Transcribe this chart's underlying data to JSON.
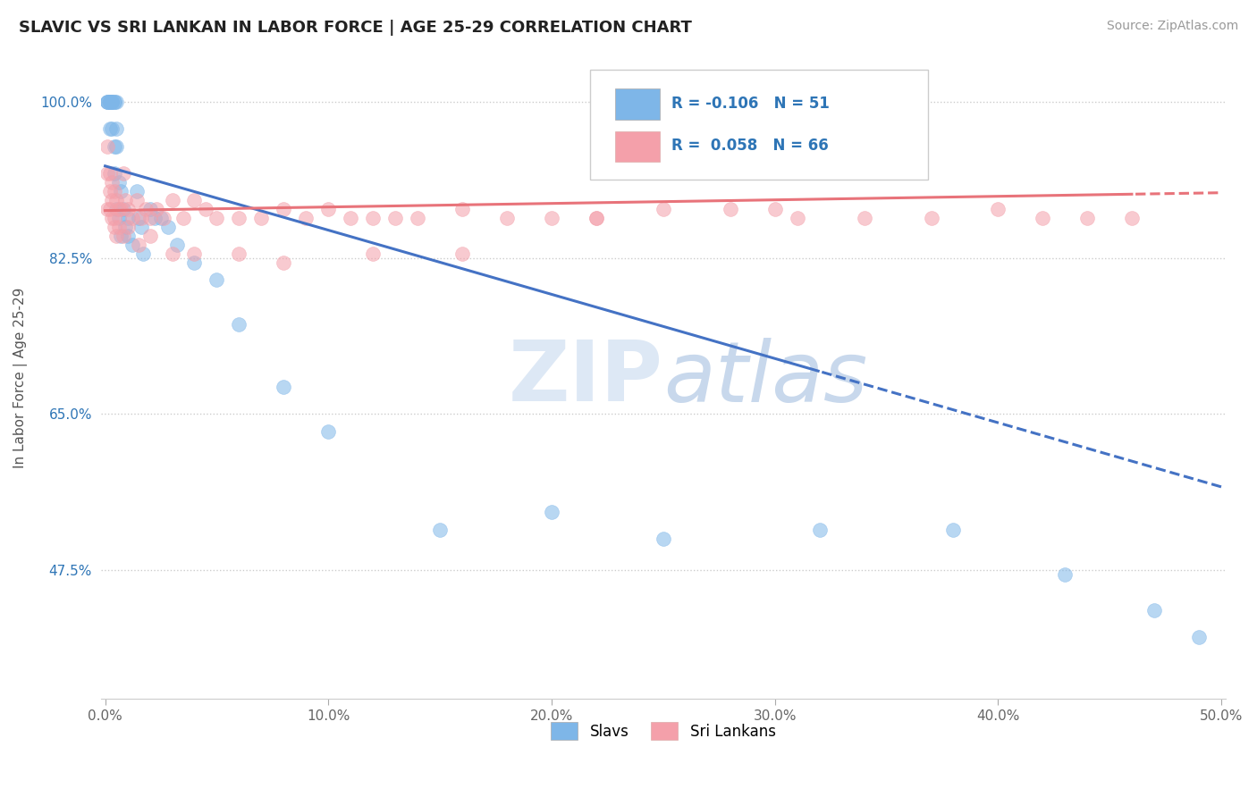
{
  "title": "SLAVIC VS SRI LANKAN IN LABOR FORCE | AGE 25-29 CORRELATION CHART",
  "source": "Source: ZipAtlas.com",
  "ylabel_label": "In Labor Force | Age 25-29",
  "xlim": [
    -0.002,
    0.502
  ],
  "ylim": [
    0.33,
    1.05
  ],
  "ytick_vals": [
    0.475,
    0.65,
    0.825,
    1.0
  ],
  "ytick_labels": [
    "47.5%",
    "65.0%",
    "82.5%",
    "100.0%"
  ],
  "xtick_vals": [
    0.0,
    0.1,
    0.2,
    0.3,
    0.4,
    0.5
  ],
  "xtick_labels": [
    "0.0%",
    "10.0%",
    "20.0%",
    "30.0%",
    "40.0%",
    "50.0%"
  ],
  "slavic_R": -0.106,
  "slavic_N": 51,
  "sri_lankan_R": 0.058,
  "sri_lankan_N": 66,
  "slavic_color": "#7EB6E8",
  "sri_lankan_color": "#F4A0AA",
  "slavic_line_color": "#4472C4",
  "sri_lankan_line_color": "#E8737A",
  "watermark": "ZIPatlas",
  "legend_R_color": "#2E75B6",
  "slavic_line_intercept": 0.928,
  "slavic_line_slope": -0.72,
  "sri_lankan_line_intercept": 0.878,
  "sri_lankan_line_slope": 0.04,
  "slavic_x": [
    0.001,
    0.001,
    0.001,
    0.002,
    0.002,
    0.002,
    0.002,
    0.002,
    0.003,
    0.003,
    0.003,
    0.003,
    0.004,
    0.004,
    0.004,
    0.004,
    0.005,
    0.005,
    0.005,
    0.005,
    0.006,
    0.006,
    0.007,
    0.007,
    0.008,
    0.009,
    0.01,
    0.01,
    0.012,
    0.014,
    0.015,
    0.016,
    0.017,
    0.02,
    0.022,
    0.025,
    0.028,
    0.032,
    0.04,
    0.05,
    0.06,
    0.08,
    0.1,
    0.15,
    0.2,
    0.25,
    0.32,
    0.38,
    0.43,
    0.47,
    0.49
  ],
  "slavic_y": [
    1.0,
    1.0,
    1.0,
    1.0,
    1.0,
    1.0,
    1.0,
    0.97,
    1.0,
    1.0,
    1.0,
    0.97,
    1.0,
    1.0,
    0.95,
    0.92,
    1.0,
    0.97,
    0.95,
    0.88,
    0.91,
    0.87,
    0.9,
    0.85,
    0.88,
    0.86,
    0.87,
    0.85,
    0.84,
    0.9,
    0.87,
    0.86,
    0.83,
    0.88,
    0.87,
    0.87,
    0.86,
    0.84,
    0.82,
    0.8,
    0.75,
    0.68,
    0.63,
    0.52,
    0.54,
    0.51,
    0.52,
    0.52,
    0.47,
    0.43,
    0.4
  ],
  "sri_lankan_x": [
    0.001,
    0.001,
    0.001,
    0.002,
    0.002,
    0.003,
    0.003,
    0.004,
    0.004,
    0.005,
    0.005,
    0.006,
    0.007,
    0.008,
    0.009,
    0.01,
    0.012,
    0.014,
    0.016,
    0.018,
    0.02,
    0.023,
    0.026,
    0.03,
    0.035,
    0.04,
    0.045,
    0.05,
    0.06,
    0.07,
    0.08,
    0.09,
    0.1,
    0.11,
    0.12,
    0.13,
    0.14,
    0.16,
    0.18,
    0.2,
    0.22,
    0.25,
    0.28,
    0.31,
    0.34,
    0.37,
    0.4,
    0.42,
    0.44,
    0.46,
    0.002,
    0.003,
    0.004,
    0.006,
    0.008,
    0.01,
    0.015,
    0.02,
    0.03,
    0.04,
    0.06,
    0.08,
    0.12,
    0.16,
    0.22,
    0.3
  ],
  "sri_lankan_y": [
    0.95,
    0.92,
    0.88,
    0.92,
    0.88,
    0.91,
    0.87,
    0.9,
    0.86,
    0.89,
    0.85,
    0.88,
    0.88,
    0.92,
    0.89,
    0.88,
    0.87,
    0.89,
    0.87,
    0.88,
    0.87,
    0.88,
    0.87,
    0.89,
    0.87,
    0.89,
    0.88,
    0.87,
    0.87,
    0.87,
    0.88,
    0.87,
    0.88,
    0.87,
    0.87,
    0.87,
    0.87,
    0.88,
    0.87,
    0.87,
    0.87,
    0.88,
    0.88,
    0.87,
    0.87,
    0.87,
    0.88,
    0.87,
    0.87,
    0.87,
    0.9,
    0.89,
    0.87,
    0.86,
    0.85,
    0.86,
    0.84,
    0.85,
    0.83,
    0.83,
    0.83,
    0.82,
    0.83,
    0.83,
    0.87,
    0.88
  ]
}
